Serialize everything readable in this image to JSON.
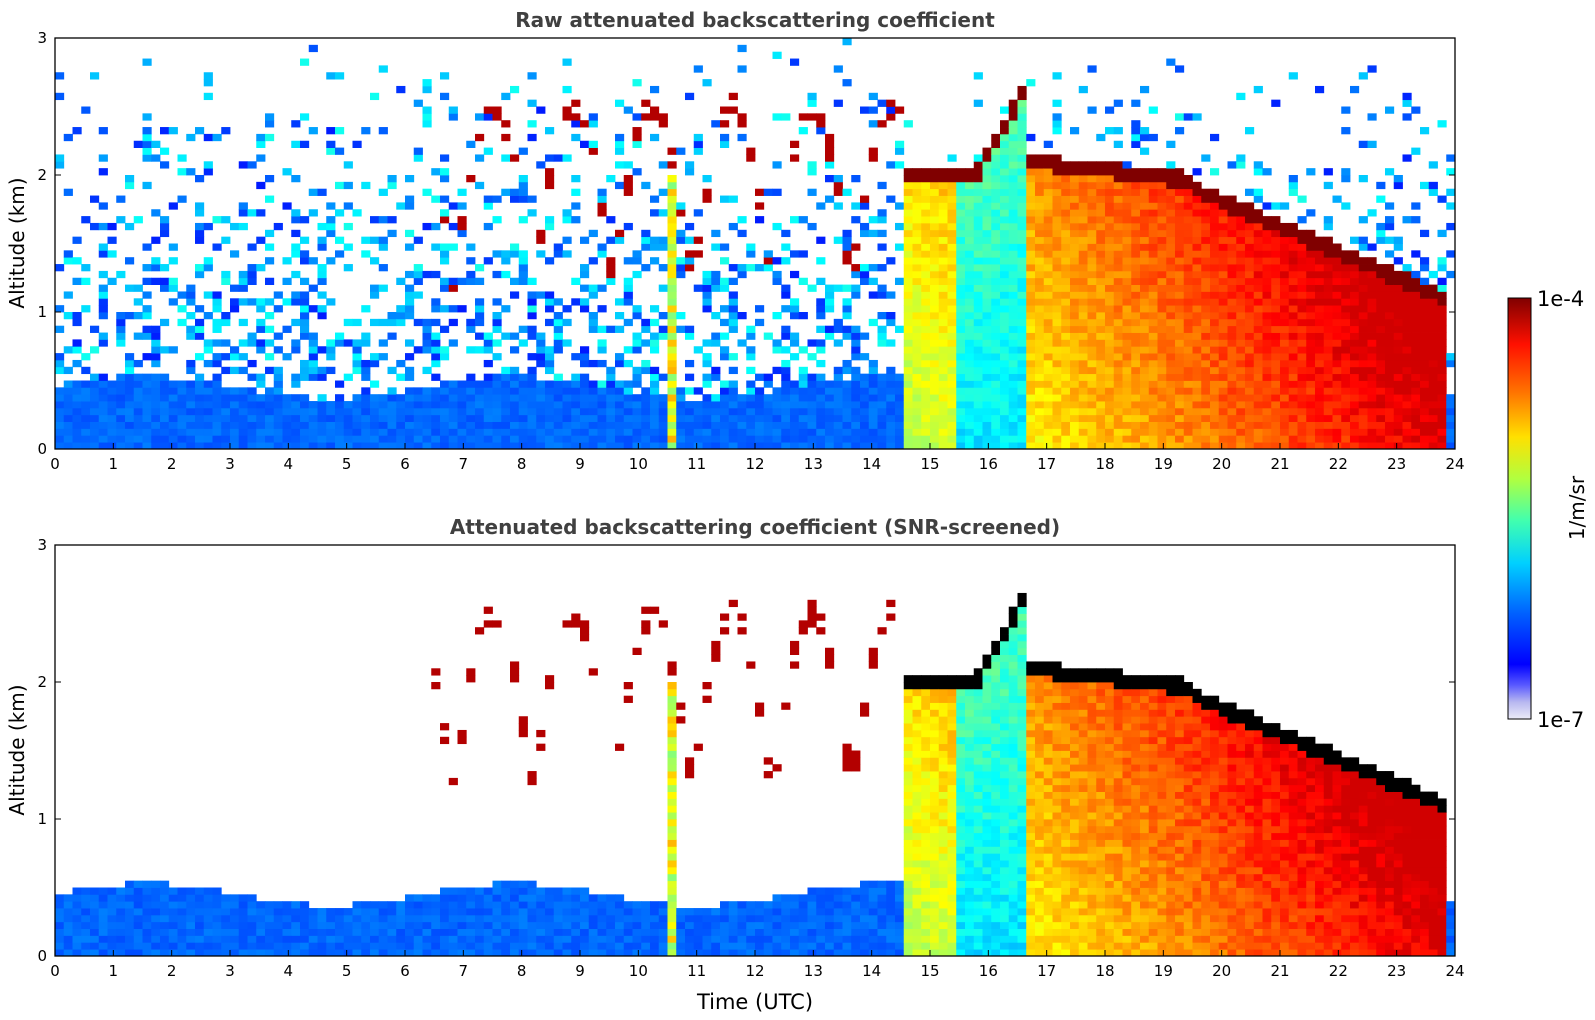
{
  "chart_data": [
    {
      "type": "heatmap",
      "title": "Raw attenuated backscattering coefficient",
      "xlabel": "",
      "ylabel": "Altitude (km)",
      "xlim": [
        0,
        24
      ],
      "ylim": [
        0,
        3
      ],
      "xticks": [
        "0",
        "1",
        "2",
        "3",
        "4",
        "5",
        "6",
        "7",
        "8",
        "9",
        "10",
        "11",
        "12",
        "13",
        "14",
        "15",
        "16",
        "17",
        "18",
        "19",
        "20",
        "21",
        "22",
        "23",
        "24"
      ],
      "yticks": [
        "0",
        "1",
        "2",
        "3"
      ],
      "screened": false,
      "features": {
        "boundary_layer_top_km": 0.5,
        "clouds": [
          {
            "t_start": 6.5,
            "t_end": 14.5,
            "altitude_km": [
              0.8,
              2.7
            ],
            "description": "scattered liquid-topped cloud elements"
          },
          {
            "t_start": 14.5,
            "t_end": 16.7,
            "altitude_km": [
              1.8,
              2.8
            ]
          },
          {
            "t_start": 16.7,
            "t_end": 19.5,
            "altitude_km": [
              1.9,
              2.3
            ]
          },
          {
            "t_start": 19.5,
            "t_end": 23.8,
            "altitude_km": [
              1.0,
              1.9
            ]
          }
        ],
        "precipitation_shafts_utc": [
          10.55,
          14.7,
          15.0,
          15.3,
          15.9
        ]
      }
    },
    {
      "type": "heatmap",
      "title": "Attenuated backscattering coefficient (SNR-screened)",
      "xlabel": "Time (UTC)",
      "ylabel": "Altitude (km)",
      "xlim": [
        0,
        24
      ],
      "ylim": [
        0,
        3
      ],
      "xticks": [
        "0",
        "1",
        "2",
        "3",
        "4",
        "5",
        "6",
        "7",
        "8",
        "9",
        "10",
        "11",
        "12",
        "13",
        "14",
        "15",
        "16",
        "17",
        "18",
        "19",
        "20",
        "21",
        "22",
        "23",
        "24"
      ],
      "yticks": [
        "0",
        "1",
        "2",
        "3"
      ],
      "screened": true
    }
  ],
  "colorbar": {
    "label": "1/m/sr",
    "min_label": "1e-7",
    "max_label": "1e-4",
    "scale": "log",
    "range": [
      1e-07,
      0.0001
    ],
    "colormap": "jet"
  },
  "colors": {
    "masked_black": "#000000",
    "frame": "#000000",
    "title_text": "#404040"
  }
}
